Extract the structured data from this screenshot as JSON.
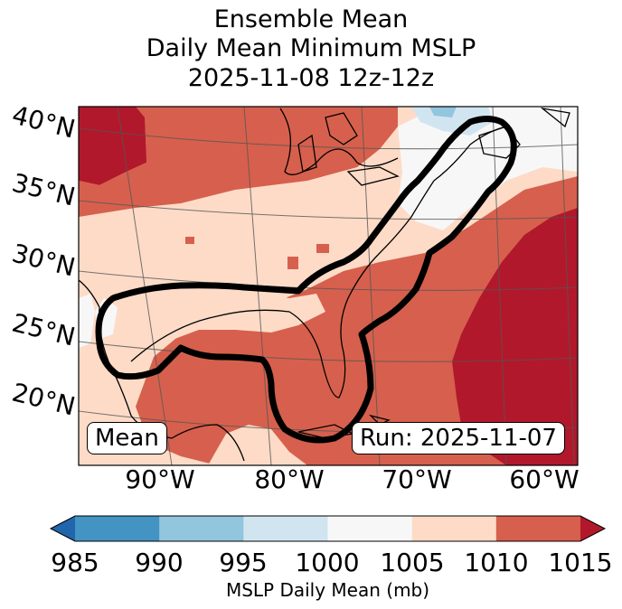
{
  "figure": {
    "title_lines": [
      "Ensemble Mean",
      "Daily Mean Minimum MSLP",
      "2025-11-08 12z-12z"
    ],
    "panel_label": "Mean",
    "run_label": "Run: 2025-11-07"
  },
  "map": {
    "lat_labels": [
      "40°N",
      "35°N",
      "30°N",
      "25°N",
      "20°N"
    ],
    "lon_labels": [
      "90°W",
      "80°W",
      "70°W",
      "60°W"
    ],
    "field_description": "MSLP daily mean shaded; black contour outlines a low-pressure corridor from the Gulf of Mexico across Florida and up the US East Coast to New England / Nova Scotia",
    "contour_color": "#000000"
  },
  "colorbar": {
    "ticks": [
      "985",
      "990",
      "995",
      "1000",
      "1005",
      "1010",
      "1015"
    ],
    "colors": [
      "#2166ac",
      "#4393c3",
      "#92c5de",
      "#d1e5f0",
      "#f7f7f7",
      "#fddbc7",
      "#d6604d",
      "#b2182b"
    ],
    "label": "MSLP Daily Mean (mb)",
    "extend": "both"
  }
}
